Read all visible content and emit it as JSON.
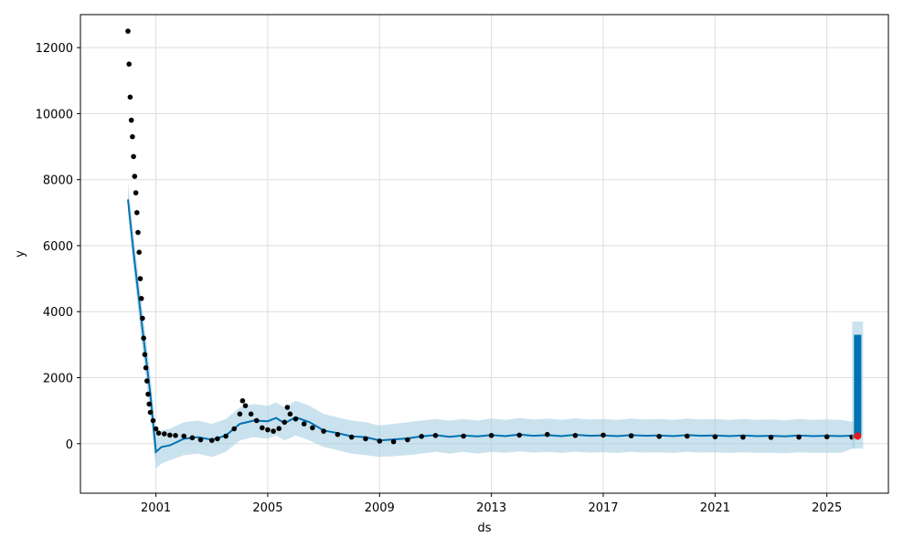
{
  "chart_data": {
    "type": "line",
    "title": "",
    "xlabel": "ds",
    "ylabel": "y",
    "x_range": [
      1998.3,
      2027.2
    ],
    "ylim": [
      -1500,
      13000
    ],
    "x_ticks": [
      2001,
      2005,
      2009,
      2013,
      2017,
      2021,
      2025
    ],
    "y_ticks": [
      0,
      2000,
      4000,
      6000,
      8000,
      10000,
      12000
    ],
    "grid": true,
    "colors": {
      "observed": "#000000",
      "forecast": "#0072B2",
      "band": "#A6CEE3",
      "highlight": "#e41a1c"
    },
    "observed": {
      "x": [
        2000.0,
        2000.04,
        2000.08,
        2000.12,
        2000.16,
        2000.2,
        2000.24,
        2000.28,
        2000.32,
        2000.36,
        2000.4,
        2000.44,
        2000.48,
        2000.52,
        2000.56,
        2000.6,
        2000.64,
        2000.68,
        2000.72,
        2000.76,
        2000.8,
        2000.9,
        2001.0,
        2001.1,
        2001.3,
        2001.5,
        2001.7,
        2002.0,
        2002.3,
        2002.6,
        2003.0,
        2003.2,
        2003.5,
        2003.8,
        2004.0,
        2004.1,
        2004.2,
        2004.4,
        2004.6,
        2004.8,
        2005.0,
        2005.2,
        2005.4,
        2005.6,
        2005.7,
        2005.8,
        2006.0,
        2006.3,
        2006.6,
        2007.0,
        2007.5,
        2008.0,
        2008.5,
        2009.0,
        2009.5,
        2010.0,
        2010.5,
        2011.0,
        2012.0,
        2013.0,
        2014.0,
        2015.0,
        2016.0,
        2017.0,
        2018.0,
        2019.0,
        2020.0,
        2021.0,
        2022.0,
        2023.0,
        2024.0,
        2025.0,
        2025.9
      ],
      "y": [
        12500,
        11500,
        10500,
        9800,
        9300,
        8700,
        8100,
        7600,
        7000,
        6400,
        5800,
        5000,
        4400,
        3800,
        3200,
        2700,
        2300,
        1900,
        1500,
        1200,
        950,
        700,
        450,
        320,
        300,
        260,
        250,
        230,
        180,
        120,
        100,
        150,
        230,
        450,
        900,
        1300,
        1150,
        900,
        700,
        480,
        420,
        380,
        460,
        650,
        1100,
        900,
        750,
        600,
        480,
        380,
        280,
        200,
        150,
        80,
        60,
        120,
        220,
        250,
        230,
        250,
        260,
        280,
        250,
        260,
        240,
        220,
        230,
        210,
        200,
        190,
        200,
        210,
        200
      ]
    },
    "forecast": {
      "x": [
        2000.0,
        2000.2,
        2000.5,
        2000.8,
        2001.0,
        2001.2,
        2001.5,
        2002.0,
        2002.5,
        2003.0,
        2003.5,
        2004.0,
        2004.5,
        2005.0,
        2005.3,
        2005.6,
        2006.0,
        2006.5,
        2007.0,
        2007.5,
        2008.0,
        2008.5,
        2009.0,
        2009.5,
        2010.0,
        2010.5,
        2011.0,
        2011.5,
        2012.0,
        2012.5,
        2013.0,
        2013.5,
        2014.0,
        2014.5,
        2015.0,
        2015.5,
        2016.0,
        2016.5,
        2017.0,
        2017.5,
        2018.0,
        2018.5,
        2019.0,
        2019.5,
        2020.0,
        2020.5,
        2021.0,
        2021.5,
        2022.0,
        2022.5,
        2023.0,
        2023.5,
        2024.0,
        2024.5,
        2025.0,
        2025.5,
        2026.0
      ],
      "y": [
        7400,
        5800,
        3600,
        1500,
        -250,
        -100,
        -50,
        150,
        200,
        120,
        250,
        600,
        700,
        680,
        780,
        620,
        800,
        650,
        400,
        320,
        220,
        200,
        100,
        130,
        160,
        220,
        260,
        210,
        250,
        220,
        260,
        230,
        280,
        240,
        260,
        230,
        270,
        240,
        250,
        230,
        260,
        240,
        250,
        230,
        260,
        240,
        250,
        230,
        250,
        230,
        240,
        220,
        250,
        230,
        240,
        230,
        250
      ],
      "lower": [
        7000,
        5300,
        3000,
        900,
        -750,
        -600,
        -500,
        -350,
        -300,
        -400,
        -250,
        100,
        200,
        150,
        250,
        100,
        250,
        100,
        -100,
        -200,
        -300,
        -350,
        -400,
        -380,
        -350,
        -300,
        -250,
        -300,
        -250,
        -300,
        -250,
        -280,
        -230,
        -270,
        -250,
        -280,
        -240,
        -270,
        -260,
        -280,
        -250,
        -270,
        -260,
        -280,
        -250,
        -270,
        -260,
        -280,
        -260,
        -280,
        -270,
        -290,
        -260,
        -280,
        -270,
        -280,
        -120
      ],
      "upper": [
        7900,
        6300,
        4200,
        2100,
        250,
        400,
        450,
        650,
        700,
        600,
        750,
        1100,
        1200,
        1150,
        1250,
        1100,
        1300,
        1150,
        900,
        800,
        700,
        650,
        550,
        600,
        650,
        700,
        750,
        700,
        750,
        700,
        760,
        720,
        780,
        730,
        760,
        720,
        770,
        730,
        750,
        720,
        760,
        730,
        750,
        720,
        760,
        730,
        750,
        720,
        750,
        720,
        740,
        710,
        750,
        720,
        740,
        720,
        650
      ]
    },
    "future_spike": {
      "x": 2026.1,
      "y_low": 250,
      "y_high": 3300,
      "band_low": -150,
      "band_high": 3700
    },
    "highlight_point": {
      "x": 2026.1,
      "y": 230
    }
  }
}
